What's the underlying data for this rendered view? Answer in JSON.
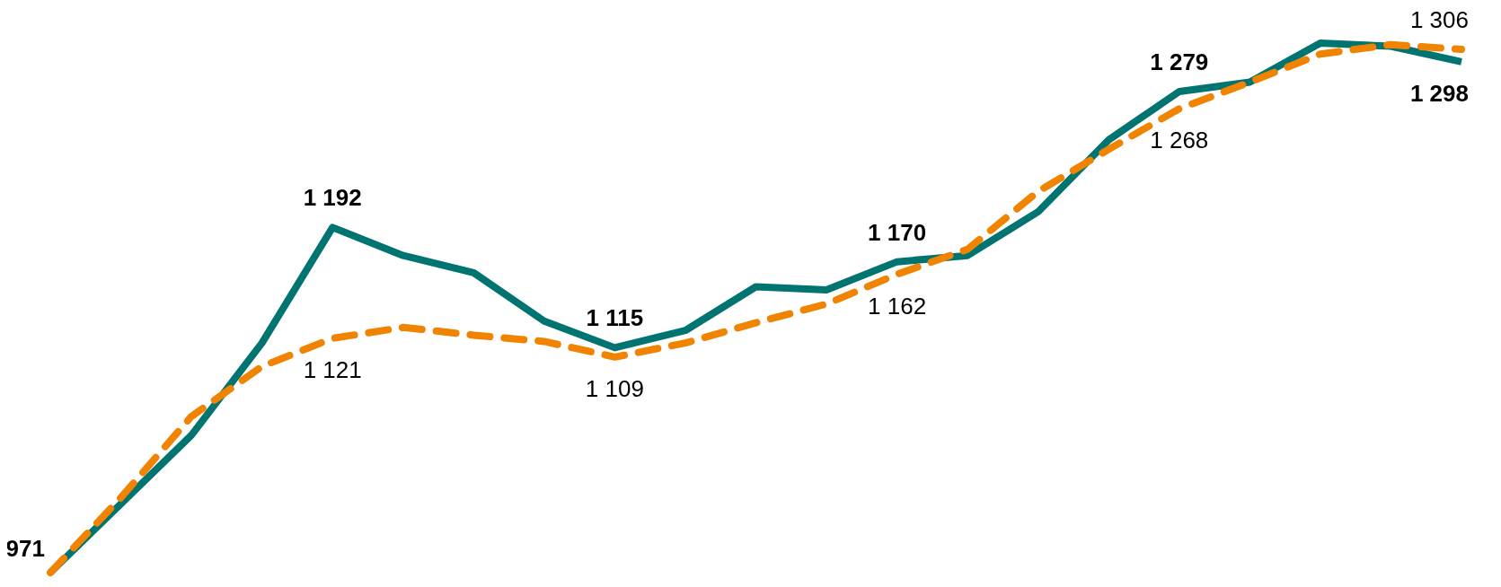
{
  "chart_data": {
    "type": "line",
    "categories": [
      null,
      null,
      null,
      null,
      null,
      null,
      null,
      null,
      null,
      null,
      null,
      null,
      null,
      null,
      null,
      null,
      null,
      null,
      null,
      null,
      null
    ],
    "marker": "none",
    "series": [
      {
        "color": "#007470",
        "line_style": "solid",
        "values": [
          971,
          1015,
          1059,
          1118,
          1192,
          1174,
          1163,
          1132,
          1115,
          1126,
          1154,
          1152,
          1170,
          1174,
          1202,
          1248,
          1279,
          1285,
          1310,
          1308,
          1298
        ],
        "value_labels": [
          "971",
          null,
          null,
          null,
          "1 192",
          null,
          null,
          null,
          "1 115",
          null,
          null,
          null,
          "1 170",
          null,
          null,
          null,
          "1 279",
          null,
          null,
          null,
          "1 298"
        ]
      },
      {
        "color": "#f08400",
        "line_style": "dashed",
        "values": [
          971,
          1019,
          1071,
          1103,
          1121,
          1128,
          1123,
          1119,
          1109,
          1118,
          1131,
          1143,
          1162,
          1178,
          1215,
          1242,
          1268,
          1285,
          1303,
          1309,
          1306
        ],
        "value_labels": [
          null,
          null,
          null,
          null,
          "1 121",
          null,
          null,
          null,
          "1 109",
          null,
          null,
          null,
          "1 162",
          null,
          null,
          null,
          "1 268",
          null,
          null,
          null,
          "1 306"
        ]
      }
    ]
  }
}
